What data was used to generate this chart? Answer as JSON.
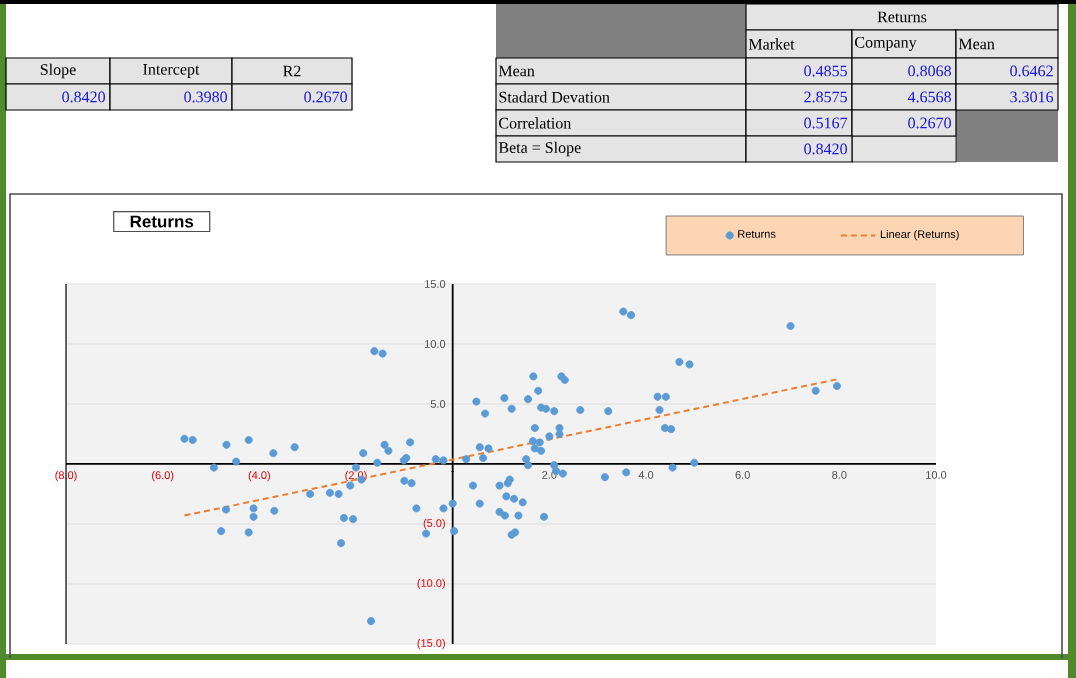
{
  "chart_data": {
    "type": "scatter",
    "title": "Returns",
    "xlim": [
      -8,
      10
    ],
    "ylim": [
      -15,
      15
    ],
    "xticks": [
      {
        "value": -8,
        "label": "(8.0)"
      },
      {
        "value": -6,
        "label": "(6.0)"
      },
      {
        "value": -4,
        "label": "(4.0)"
      },
      {
        "value": -2,
        "label": "(2.0)"
      },
      {
        "value": 0,
        "label": "-"
      },
      {
        "value": 2,
        "label": "2.0"
      },
      {
        "value": 4,
        "label": "4.0"
      },
      {
        "value": 6,
        "label": "6.0"
      },
      {
        "value": 8,
        "label": "8.0"
      },
      {
        "value": 10,
        "label": "10.0"
      }
    ],
    "yticks": [
      {
        "value": -15,
        "label": "(15.0)"
      },
      {
        "value": -10,
        "label": "(10.0)"
      },
      {
        "value": -5,
        "label": "(5.0)"
      },
      {
        "value": 0,
        "label": null
      },
      {
        "value": 5,
        "label": "5.0"
      },
      {
        "value": 10,
        "label": "10.0"
      },
      {
        "value": 15,
        "label": "15.0"
      }
    ],
    "grid": "y",
    "legend": "top right",
    "series": [
      {
        "name": "Returns",
        "marker": "circle",
        "color": "#5b9bd5",
        "x": [
          -5.55,
          -5.38,
          -4.68,
          -4.22,
          -4.94,
          -4.48,
          -3.71,
          -3.27,
          -4.69,
          -4.12,
          -4.12,
          -3.69,
          -4.79,
          -4.22,
          -2.95,
          -2.54,
          -2.36,
          -2.25,
          -2.06,
          -2.31,
          -2.12,
          -2.0,
          -1.89,
          -1.85,
          -1.56,
          -1.41,
          -1.33,
          -1.62,
          -1.45,
          -1.01,
          -0.96,
          -0.88,
          -1.0,
          -0.85,
          -0.75,
          -0.55,
          -0.35,
          -0.19,
          -0.19,
          0.0,
          0.03,
          -1.69,
          0.28,
          0.42,
          0.49,
          0.56,
          0.56,
          0.67,
          0.63,
          0.74,
          0.97,
          1.07,
          1.14,
          1.11,
          1.22,
          1.18,
          0.97,
          1.08,
          1.22,
          1.29,
          1.27,
          1.36,
          1.45,
          1.52,
          1.56,
          1.56,
          1.67,
          1.7,
          1.66,
          1.7,
          1.77,
          1.8,
          1.83,
          1.83,
          1.93,
          1.89,
          2.0,
          2.1,
          2.1,
          2.14,
          2.21,
          2.28,
          2.25,
          2.32,
          2.21,
          2.64,
          3.15,
          3.22,
          3.53,
          3.69,
          3.59,
          4.24,
          4.28,
          4.39,
          4.41,
          4.52,
          4.55,
          4.69,
          4.9,
          5.0,
          6.99,
          7.51,
          7.95
        ],
        "values": [
          2.1,
          2.0,
          1.6,
          2.0,
          -0.3,
          0.2,
          0.9,
          1.4,
          -3.8,
          -3.7,
          -4.4,
          -3.9,
          -5.6,
          -5.7,
          -2.5,
          -2.4,
          -2.5,
          -4.5,
          -4.6,
          -6.6,
          -1.8,
          -0.3,
          -1.3,
          0.9,
          0.1,
          1.6,
          1.1,
          9.4,
          9.2,
          0.3,
          0.5,
          1.8,
          -1.4,
          -1.6,
          -3.7,
          -5.8,
          0.4,
          0.3,
          -3.7,
          -3.3,
          -5.6,
          -13.1,
          0.4,
          -1.8,
          5.2,
          -3.3,
          1.4,
          4.2,
          0.5,
          1.3,
          -1.8,
          5.5,
          -1.6,
          -2.7,
          4.6,
          -1.3,
          -4.0,
          -4.3,
          -5.9,
          -5.7,
          -2.9,
          -4.3,
          -3.2,
          0.4,
          -0.1,
          5.4,
          7.3,
          3.0,
          1.9,
          1.3,
          6.1,
          1.8,
          1.1,
          4.7,
          4.6,
          -4.4,
          2.3,
          4.4,
          -0.1,
          -0.6,
          3.0,
          -0.8,
          7.3,
          7.0,
          2.5,
          4.5,
          -1.1,
          4.4,
          12.7,
          12.4,
          -0.7,
          5.6,
          4.5,
          3.0,
          5.6,
          2.9,
          -0.3,
          8.5,
          8.3,
          0.1,
          11.5,
          6.1,
          6.5
        ]
      },
      {
        "name": "Linear (Returns)",
        "type": "line",
        "line_style": "dashed",
        "color": "#ed7d31",
        "x": [
          -5.55,
          8
        ],
        "values": [
          -4.3,
          7.1
        ]
      }
    ],
    "annotations": [
      "Slope",
      "Intercept",
      "R2",
      "0.8420",
      "0.3980",
      "0.2670",
      "Returns",
      "Market",
      "Company",
      "Mean",
      "Mean",
      "0.4855",
      "0.8068",
      "0.6462",
      "Stadard Devation",
      "2.8575",
      "4.6568",
      "3.3016",
      "Correlation",
      "0.5167",
      "0.2670",
      "Beta = Slope",
      "0.8420"
    ]
  }
}
